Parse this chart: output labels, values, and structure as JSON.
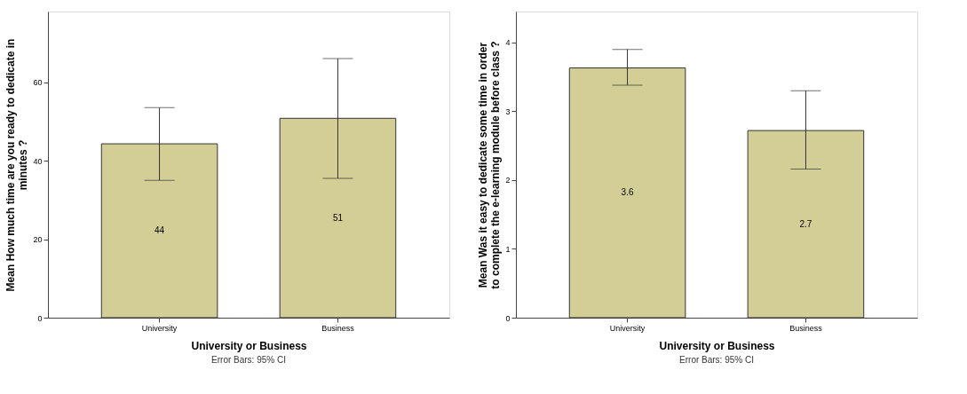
{
  "chart_data": [
    {
      "type": "bar",
      "xlabel": "University or Business",
      "ylabel": "Mean How much time are you ready to dedicate in minutes ?",
      "categories": [
        "University",
        "Business"
      ],
      "values": [
        44.3,
        50.8
      ],
      "errors": [
        [
          35.0,
          53.5
        ],
        [
          35.5,
          66.0
        ]
      ],
      "value_labels": [
        "44",
        "51"
      ],
      "color": "#d3ce96",
      "ylim": [
        0,
        78
      ],
      "yticks": [
        0,
        20,
        40,
        60
      ],
      "grid": false,
      "annotations": [
        "Error Bars: 95% CI"
      ]
    },
    {
      "type": "bar",
      "xlabel": "University or Business",
      "ylabel": "Mean Was it easy to dedicate some time in order to complete the e-learning module before class ?",
      "categories": [
        "University",
        "Business"
      ],
      "values": [
        3.63,
        2.72
      ],
      "errors": [
        [
          3.38,
          3.9
        ],
        [
          2.16,
          3.3
        ]
      ],
      "value_labels": [
        "3.6",
        "2.7"
      ],
      "color": "#d3ce96",
      "ylim": [
        0,
        4.45
      ],
      "yticks": [
        0,
        1,
        2,
        3,
        4
      ],
      "grid": false,
      "annotations": [
        "Error Bars: 95% CI"
      ]
    }
  ]
}
